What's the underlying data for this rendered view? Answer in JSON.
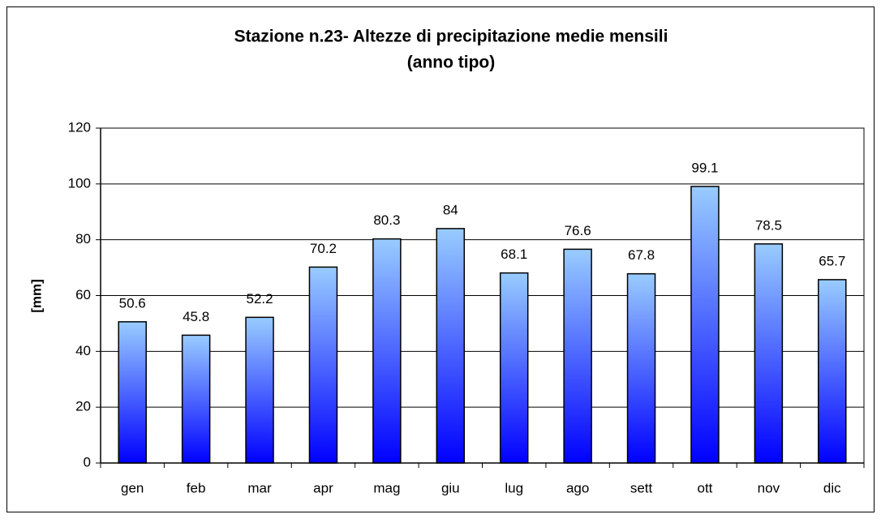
{
  "chart_data": {
    "type": "bar",
    "title": [
      "Stazione n.23- Altezze di precipitazione medie mensili",
      "(anno tipo)"
    ],
    "y_label": "[mm]",
    "categories": [
      "gen",
      "feb",
      "mar",
      "apr",
      "mag",
      "giu",
      "lug",
      "ago",
      "sett",
      "ott",
      "nov",
      "dic"
    ],
    "values": [
      50.6,
      45.8,
      52.2,
      70.2,
      80.3,
      84,
      68.1,
      76.6,
      67.8,
      99.1,
      78.5,
      65.7
    ],
    "color": [
      "#99ccff",
      "#0000ff"
    ],
    "ylim": [
      0,
      120
    ],
    "yticks": [
      0,
      20,
      40,
      60,
      80,
      100,
      120
    ],
    "grid": true
  }
}
